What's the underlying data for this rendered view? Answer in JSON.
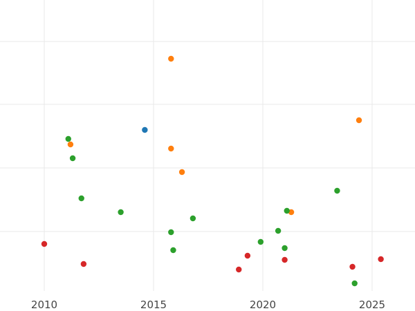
{
  "chart_data": {
    "type": "scatter",
    "title": "",
    "xlabel": "",
    "ylabel": "",
    "xlim": [
      2010,
      2025
    ],
    "ylim": [
      0,
      450
    ],
    "grid": true,
    "x_ticks": [
      {
        "value": 2010,
        "label": "2010"
      },
      {
        "value": 2015,
        "label": "2015"
      },
      {
        "value": 2020,
        "label": "2020"
      },
      {
        "value": 2025,
        "label": "2025"
      }
    ],
    "series": [
      {
        "color": "#1f77b4",
        "points": [
          {
            "x": 2014.6,
            "y": 188
          }
        ]
      },
      {
        "color": "#ff7f0e",
        "points": [
          {
            "x": 2015.8,
            "y": 85
          },
          {
            "x": 2011.2,
            "y": 209
          },
          {
            "x": 2015.8,
            "y": 215
          },
          {
            "x": 2016.3,
            "y": 249
          },
          {
            "x": 2024.4,
            "y": 174
          },
          {
            "x": 2021.3,
            "y": 307
          }
        ]
      },
      {
        "color": "#2ca02c",
        "points": [
          {
            "x": 2011.1,
            "y": 201
          },
          {
            "x": 2011.3,
            "y": 229
          },
          {
            "x": 2011.7,
            "y": 287
          },
          {
            "x": 2013.5,
            "y": 307
          },
          {
            "x": 2015.8,
            "y": 336
          },
          {
            "x": 2015.9,
            "y": 362
          },
          {
            "x": 2016.8,
            "y": 316
          },
          {
            "x": 2019.9,
            "y": 350
          },
          {
            "x": 2020.7,
            "y": 334
          },
          {
            "x": 2021.0,
            "y": 359
          },
          {
            "x": 2021.1,
            "y": 305
          },
          {
            "x": 2023.4,
            "y": 276
          },
          {
            "x": 2024.2,
            "y": 410
          }
        ]
      },
      {
        "color": "#d62728",
        "points": [
          {
            "x": 2010.0,
            "y": 353
          },
          {
            "x": 2011.8,
            "y": 382
          },
          {
            "x": 2018.9,
            "y": 390
          },
          {
            "x": 2019.3,
            "y": 370
          },
          {
            "x": 2021.0,
            "y": 376
          },
          {
            "x": 2024.1,
            "y": 386
          },
          {
            "x": 2025.4,
            "y": 375
          }
        ]
      }
    ]
  }
}
